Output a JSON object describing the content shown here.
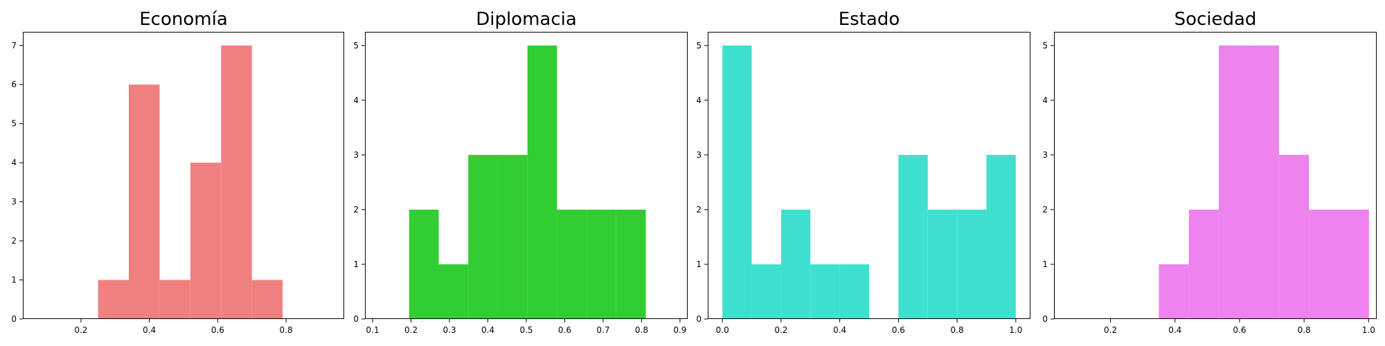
{
  "chart_data": [
    {
      "type": "bar",
      "title": "Economía",
      "color": "#F08080",
      "xlim": [
        0.03,
        0.97
      ],
      "ylim": [
        0,
        7.35
      ],
      "xticks": [
        0.2,
        0.4,
        0.6,
        0.8
      ],
      "xtick_labels": [
        "0.2",
        "0.4",
        "0.6",
        "0.8"
      ],
      "yticks": [
        0,
        1,
        2,
        3,
        4,
        5,
        6,
        7
      ],
      "ytick_labels": [
        "0",
        "1",
        "2",
        "3",
        "4",
        "5",
        "6",
        "7"
      ],
      "bins": [
        {
          "x0": 0.25,
          "x1": 0.34,
          "value": 1
        },
        {
          "x0": 0.34,
          "x1": 0.43,
          "value": 6
        },
        {
          "x0": 0.43,
          "x1": 0.52,
          "value": 1
        },
        {
          "x0": 0.52,
          "x1": 0.61,
          "value": 4
        },
        {
          "x0": 0.61,
          "x1": 0.7,
          "value": 7
        },
        {
          "x0": 0.7,
          "x1": 0.79,
          "value": 1
        }
      ]
    },
    {
      "type": "bar",
      "title": "Diplomacia",
      "color": "#32CD32",
      "xlim": [
        0.08,
        0.92
      ],
      "ylim": [
        0,
        5.25
      ],
      "xticks": [
        0.1,
        0.2,
        0.3,
        0.4,
        0.5,
        0.6,
        0.7,
        0.8,
        0.9
      ],
      "xtick_labels": [
        "0.1",
        "0.2",
        "0.3",
        "0.4",
        "0.5",
        "0.6",
        "0.7",
        "0.8",
        "0.9"
      ],
      "yticks": [
        0,
        1,
        2,
        3,
        4,
        5
      ],
      "ytick_labels": [
        "0",
        "1",
        "2",
        "3",
        "4",
        "5"
      ],
      "bins": [
        {
          "x0": 0.195,
          "x1": 0.272,
          "value": 2
        },
        {
          "x0": 0.272,
          "x1": 0.349,
          "value": 1
        },
        {
          "x0": 0.349,
          "x1": 0.426,
          "value": 3
        },
        {
          "x0": 0.426,
          "x1": 0.503,
          "value": 3
        },
        {
          "x0": 0.503,
          "x1": 0.58,
          "value": 5
        },
        {
          "x0": 0.58,
          "x1": 0.657,
          "value": 2
        },
        {
          "x0": 0.657,
          "x1": 0.734,
          "value": 2
        },
        {
          "x0": 0.734,
          "x1": 0.811,
          "value": 2
        }
      ]
    },
    {
      "type": "bar",
      "title": "Estado",
      "color": "#40E0D0",
      "xlim": [
        -0.05,
        1.05
      ],
      "ylim": [
        0,
        5.25
      ],
      "xticks": [
        0.0,
        0.2,
        0.4,
        0.6,
        0.8,
        1.0
      ],
      "xtick_labels": [
        "0.0",
        "0.2",
        "0.4",
        "0.6",
        "0.8",
        "1.0"
      ],
      "yticks": [
        0,
        1,
        2,
        3,
        4,
        5
      ],
      "ytick_labels": [
        "0",
        "1",
        "2",
        "3",
        "4",
        "5"
      ],
      "bins": [
        {
          "x0": 0.0,
          "x1": 0.1,
          "value": 5
        },
        {
          "x0": 0.1,
          "x1": 0.2,
          "value": 1
        },
        {
          "x0": 0.2,
          "x1": 0.3,
          "value": 2
        },
        {
          "x0": 0.3,
          "x1": 0.4,
          "value": 1
        },
        {
          "x0": 0.4,
          "x1": 0.5,
          "value": 1
        },
        {
          "x0": 0.5,
          "x1": 0.6,
          "value": 0
        },
        {
          "x0": 0.6,
          "x1": 0.7,
          "value": 3
        },
        {
          "x0": 0.7,
          "x1": 0.8,
          "value": 2
        },
        {
          "x0": 0.8,
          "x1": 0.9,
          "value": 2
        },
        {
          "x0": 0.9,
          "x1": 1.0,
          "value": 3
        }
      ]
    },
    {
      "type": "bar",
      "title": "Sociedad",
      "color": "#EE82EE",
      "xlim": [
        0.025,
        1.025
      ],
      "ylim": [
        0,
        5.25
      ],
      "xticks": [
        0.2,
        0.4,
        0.6,
        0.8,
        1.0
      ],
      "xtick_labels": [
        "0.2",
        "0.4",
        "0.6",
        "0.8",
        "1.0"
      ],
      "yticks": [
        0,
        1,
        2,
        3,
        4,
        5
      ],
      "ytick_labels": [
        "0",
        "1",
        "2",
        "3",
        "4",
        "5"
      ],
      "bins": [
        {
          "x0": 0.35,
          "x1": 0.443,
          "value": 1
        },
        {
          "x0": 0.443,
          "x1": 0.536,
          "value": 2
        },
        {
          "x0": 0.536,
          "x1": 0.629,
          "value": 5
        },
        {
          "x0": 0.629,
          "x1": 0.722,
          "value": 5
        },
        {
          "x0": 0.722,
          "x1": 0.815,
          "value": 3
        },
        {
          "x0": 0.815,
          "x1": 0.908,
          "value": 2
        },
        {
          "x0": 0.908,
          "x1": 1.001,
          "value": 2
        }
      ]
    }
  ]
}
